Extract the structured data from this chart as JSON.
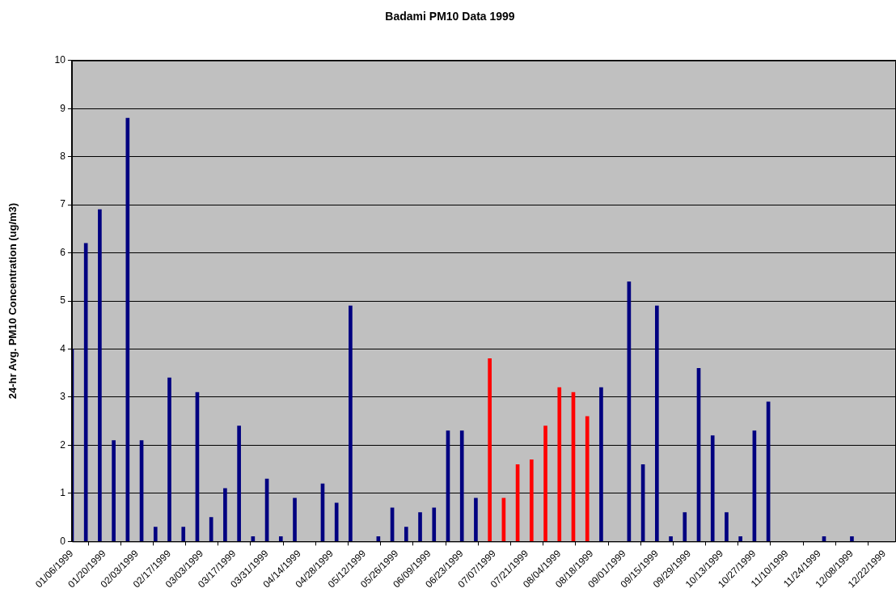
{
  "chart_data": {
    "type": "bar",
    "title": "Badami PM10 Data 1999",
    "ylabel": "24-hr Avg. PM10 Concentration (ug/m3)",
    "x": [
      "1999-01-06",
      "1999-01-12",
      "1999-01-18",
      "1999-01-24",
      "1999-01-30",
      "1999-02-05",
      "1999-02-11",
      "1999-02-17",
      "1999-02-23",
      "1999-03-01",
      "1999-03-07",
      "1999-03-13",
      "1999-03-19",
      "1999-03-25",
      "1999-03-31",
      "1999-04-06",
      "1999-04-12",
      "1999-04-18",
      "1999-04-24",
      "1999-04-30",
      "1999-05-06",
      "1999-05-12",
      "1999-05-18",
      "1999-05-24",
      "1999-05-30",
      "1999-06-05",
      "1999-06-11",
      "1999-06-17",
      "1999-06-23",
      "1999-06-29",
      "1999-07-05",
      "1999-07-11",
      "1999-07-17",
      "1999-07-23",
      "1999-07-29",
      "1999-08-04",
      "1999-08-10",
      "1999-08-16",
      "1999-08-22",
      "1999-08-28",
      "1999-09-03",
      "1999-09-09",
      "1999-09-15",
      "1999-09-21",
      "1999-09-27",
      "1999-10-03",
      "1999-10-09",
      "1999-10-15",
      "1999-10-21",
      "1999-10-27",
      "1999-11-02",
      "1999-11-08",
      "1999-11-14",
      "1999-11-20",
      "1999-11-26",
      "1999-12-02",
      "1999-12-08"
    ],
    "values": [
      4.0,
      6.2,
      6.9,
      2.1,
      8.8,
      2.1,
      0.3,
      3.4,
      0.3,
      3.1,
      0.5,
      1.1,
      2.4,
      0.1,
      1.3,
      0.1,
      0.9,
      null,
      1.2,
      0.8,
      4.9,
      null,
      0.1,
      0.7,
      0.3,
      0.6,
      0.7,
      2.3,
      2.3,
      0.9,
      3.8,
      0.9,
      1.6,
      1.7,
      2.4,
      3.2,
      3.1,
      2.6,
      3.2,
      null,
      5.4,
      1.6,
      4.9,
      0.1,
      0.6,
      3.6,
      2.2,
      0.6,
      0.1,
      2.3,
      2.9,
      null,
      null,
      null,
      0.1,
      null,
      0.1
    ],
    "colors": [
      "#000080",
      "#000080",
      "#000080",
      "#000080",
      "#000080",
      "#000080",
      "#000080",
      "#000080",
      "#000080",
      "#000080",
      "#000080",
      "#000080",
      "#000080",
      "#000080",
      "#000080",
      "#000080",
      "#000080",
      "#000080",
      "#000080",
      "#000080",
      "#000080",
      "#000080",
      "#000080",
      "#000080",
      "#000080",
      "#000080",
      "#000080",
      "#000080",
      "#000080",
      "#000080",
      "#ff0000",
      "#ff0000",
      "#ff0000",
      "#ff0000",
      "#ff0000",
      "#ff0000",
      "#ff0000",
      "#ff0000",
      "#000080",
      "#000080",
      "#000080",
      "#000080",
      "#000080",
      "#000080",
      "#000080",
      "#000080",
      "#000080",
      "#000080",
      "#000080",
      "#000080",
      "#000080",
      "#000080",
      "#000080",
      "#000080",
      "#000080",
      "#000080",
      "#000080"
    ],
    "xlim": [
      "1999-01-06",
      "1999-12-27"
    ],
    "xticks": [
      {
        "value": "1999-01-06",
        "label": "01/06/1999"
      },
      {
        "value": "1999-01-20",
        "label": "01/20/1999"
      },
      {
        "value": "1999-02-03",
        "label": "02/03/1999"
      },
      {
        "value": "1999-02-17",
        "label": "02/17/1999"
      },
      {
        "value": "1999-03-03",
        "label": "03/03/1999"
      },
      {
        "value": "1999-03-17",
        "label": "03/17/1999"
      },
      {
        "value": "1999-03-31",
        "label": "03/31/1999"
      },
      {
        "value": "1999-04-14",
        "label": "04/14/1999"
      },
      {
        "value": "1999-04-28",
        "label": "04/28/1999"
      },
      {
        "value": "1999-05-12",
        "label": "05/12/1999"
      },
      {
        "value": "1999-05-26",
        "label": "05/26/1999"
      },
      {
        "value": "1999-06-09",
        "label": "06/09/1999"
      },
      {
        "value": "1999-06-23",
        "label": "06/23/1999"
      },
      {
        "value": "1999-07-07",
        "label": "07/07/1999"
      },
      {
        "value": "1999-07-21",
        "label": "07/21/1999"
      },
      {
        "value": "1999-08-04",
        "label": "08/04/1999"
      },
      {
        "value": "1999-08-18",
        "label": "08/18/1999"
      },
      {
        "value": "1999-09-01",
        "label": "09/01/1999"
      },
      {
        "value": "1999-09-15",
        "label": "09/15/1999"
      },
      {
        "value": "1999-09-29",
        "label": "09/29/1999"
      },
      {
        "value": "1999-10-13",
        "label": "10/13/1999"
      },
      {
        "value": "1999-10-27",
        "label": "10/27/1999"
      },
      {
        "value": "1999-11-10",
        "label": "11/10/1999"
      },
      {
        "value": "1999-11-24",
        "label": "11/24/1999"
      },
      {
        "value": "1999-12-08",
        "label": "12/08/1999"
      },
      {
        "value": "1999-12-22",
        "label": "12/22/1999"
      }
    ],
    "ylim": [
      0,
      10
    ],
    "yticks": [
      0,
      1,
      2,
      3,
      4,
      5,
      6,
      7,
      8,
      9,
      10
    ],
    "grid": "y",
    "legend": false
  }
}
